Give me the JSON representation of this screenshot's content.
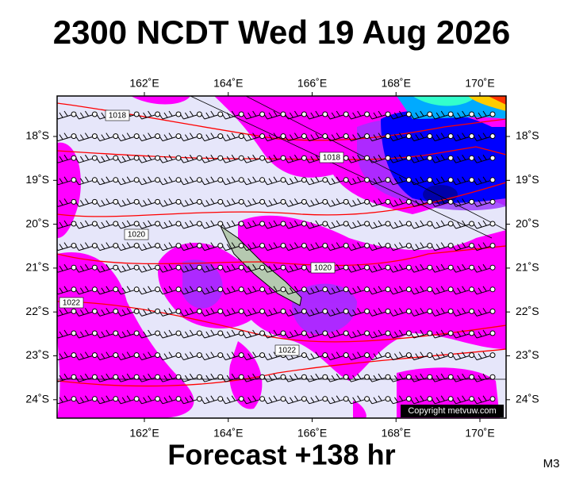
{
  "header": {
    "title": "2300 NCDT Wed 19 Aug 2026"
  },
  "map": {
    "top_labels": [
      "162˚E",
      "164˚E",
      "166˚E",
      "168˚E",
      "170˚E"
    ],
    "bottom_labels": [
      "162˚E",
      "164˚E",
      "166˚E",
      "168˚E",
      "170˚E"
    ],
    "left_labels": [
      "18˚S",
      "19˚S",
      "20˚S",
      "21˚S",
      "22˚S",
      "23˚S",
      "24˚S"
    ],
    "right_labels": [
      "18˚S",
      "19˚S",
      "20˚S",
      "21˚S",
      "22˚S",
      "23˚S",
      "24˚S"
    ],
    "isobar_labels": [
      "1018",
      "1018",
      "1020",
      "1020",
      "1022",
      "1022"
    ],
    "copyright": "Copyright metvuw.com"
  },
  "footer": {
    "forecast": "Forecast +138 hr",
    "model": "M3"
  }
}
